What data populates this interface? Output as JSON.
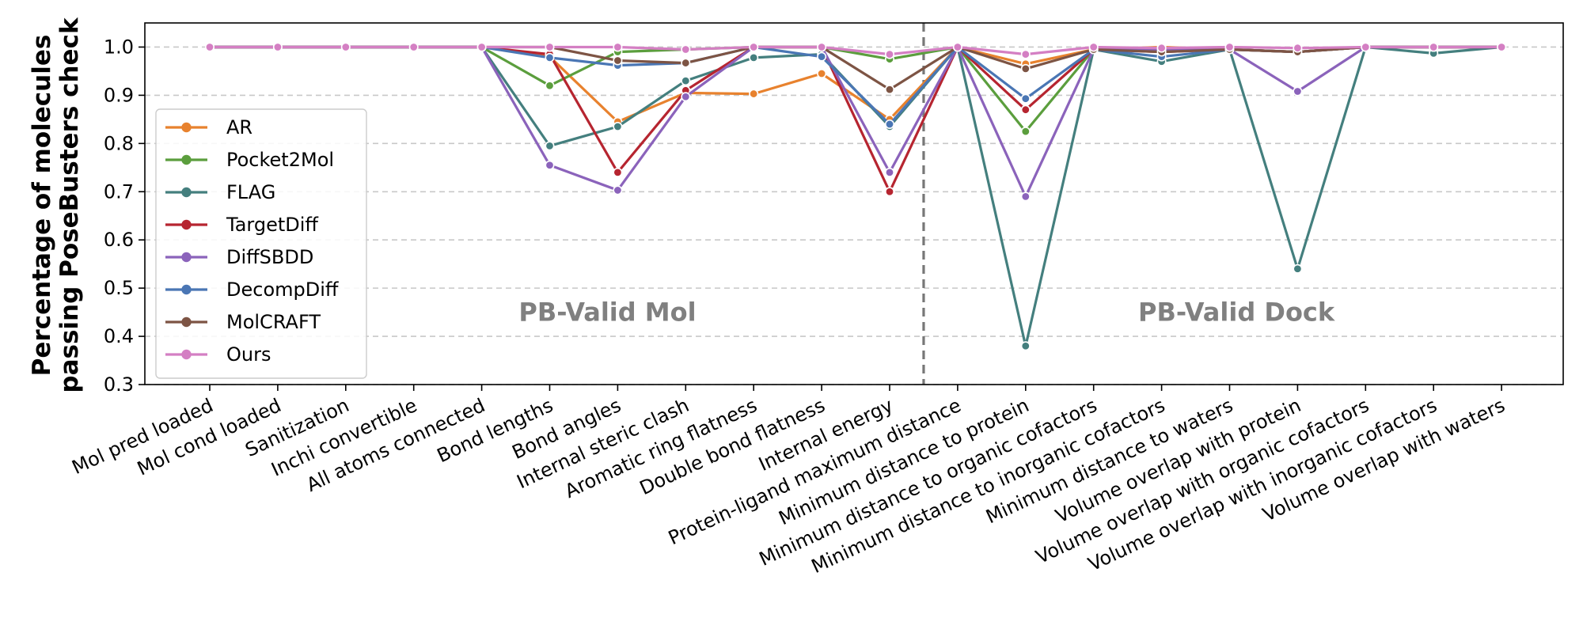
{
  "chart_data": {
    "type": "line",
    "ylabel_lines": [
      "Percentage of molecules",
      "passing PoseBusters check"
    ],
    "ylim": [
      0.3,
      1.05
    ],
    "yticks": [
      "0.3",
      "0.4",
      "0.5",
      "0.6",
      "0.7",
      "0.8",
      "0.9",
      "1.0"
    ],
    "grid": "horizontal dashed",
    "legend_position": "left",
    "categories": [
      "Mol pred loaded",
      "Mol cond loaded",
      "Sanitization",
      "Inchi convertible",
      "All atoms connected",
      "Bond lengths",
      "Bond angles",
      "Internal steric clash",
      "Aromatic ring flatness",
      "Double bond flatness",
      "Internal energy",
      "Protein-ligand maximum distance",
      "Minimum distance to protein",
      "Minimum distance to organic cofactors",
      "Minimum distance to inorganic cofactors",
      "Minimum distance to waters",
      "Volume overlap with protein",
      "Volume overlap with organic cofactors",
      "Volume overlap with inorganic cofactors",
      "Volume overlap with waters"
    ],
    "highlighted_categories": [
      "Bond lengths",
      "Bond angles",
      "Internal energy",
      "Minimum distance to protein"
    ],
    "region_labels": [
      {
        "text": "PB-Valid Mol",
        "x_position": 5.85,
        "y": 0.45
      },
      {
        "text": "PB-Valid Dock",
        "x_position": 15.1,
        "y": 0.45
      }
    ],
    "divider_x_position": 10.5,
    "series": [
      {
        "name": "AR",
        "color": "#e8822e",
        "values": [
          1,
          1,
          1,
          1,
          1,
          0.98,
          0.845,
          0.905,
          0.903,
          0.945,
          0.85,
          1,
          0.965,
          0.995,
          1.0,
          0.995,
          0.99,
          1,
          1,
          1
        ]
      },
      {
        "name": "Pocket2Mol",
        "color": "#5b9e3d",
        "values": [
          1,
          1,
          1,
          1,
          1,
          0.92,
          0.99,
          0.995,
          1.0,
          1.0,
          0.975,
          1,
          0.825,
          0.995,
          0.995,
          0.995,
          0.99,
          1,
          1,
          1
        ]
      },
      {
        "name": "FLAG",
        "color": "#447f7e",
        "values": [
          1,
          1,
          1,
          1,
          1,
          0.795,
          0.835,
          0.93,
          0.978,
          0.985,
          0.835,
          1,
          0.38,
          0.995,
          0.97,
          0.995,
          0.54,
          1,
          0.987,
          1
        ]
      },
      {
        "name": "TargetDiff",
        "color": "#b62530",
        "values": [
          1,
          1,
          1,
          1,
          1,
          0.985,
          0.74,
          0.91,
          1.0,
          1.0,
          0.7,
          1,
          0.87,
          0.995,
          0.99,
          0.995,
          0.99,
          1,
          1,
          1
        ]
      },
      {
        "name": "DiffSBDD",
        "color": "#8b63bb",
        "values": [
          1,
          1,
          1,
          1,
          1,
          0.755,
          0.703,
          0.897,
          1.0,
          1.0,
          0.74,
          1,
          0.69,
          0.995,
          0.995,
          0.995,
          0.908,
          1,
          1,
          1
        ]
      },
      {
        "name": "DecompDiff",
        "color": "#4a76b4",
        "values": [
          1,
          1,
          1,
          1,
          1,
          0.978,
          0.962,
          0.967,
          1.0,
          0.98,
          0.84,
          1,
          0.893,
          0.995,
          0.98,
          0.995,
          0.99,
          1,
          1,
          1
        ]
      },
      {
        "name": "MolCRAFT",
        "color": "#7d5444",
        "values": [
          1,
          1,
          1,
          1,
          1,
          1.0,
          0.972,
          0.967,
          1.0,
          1.0,
          0.912,
          1,
          0.955,
          0.995,
          0.99,
          0.995,
          0.99,
          1,
          1,
          1
        ]
      },
      {
        "name": "Ours",
        "color": "#d47fc3",
        "values": [
          1,
          1,
          1,
          1,
          1,
          1.0,
          1.0,
          0.995,
          1.0,
          1.0,
          0.985,
          1,
          0.985,
          1.0,
          0.998,
          1.0,
          0.998,
          1,
          1,
          1
        ]
      }
    ]
  }
}
